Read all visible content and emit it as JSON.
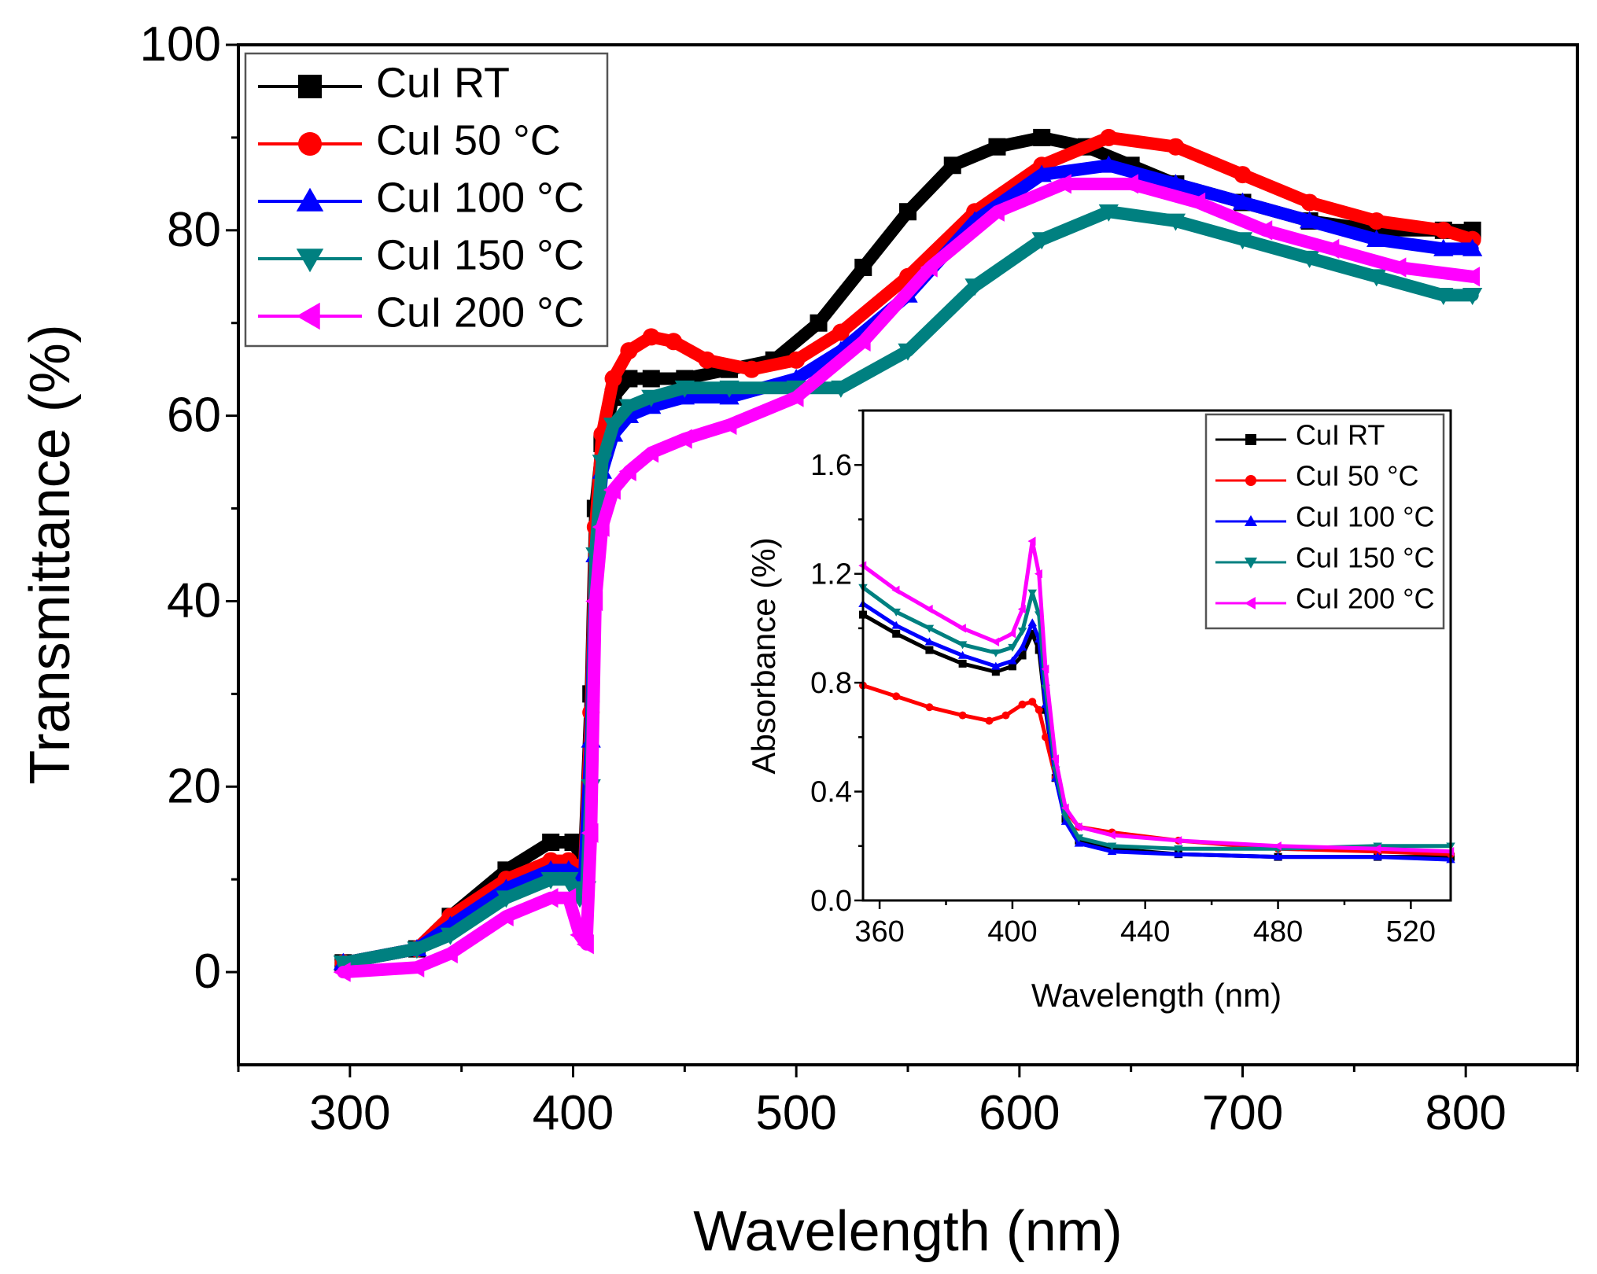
{
  "chart_data": [
    {
      "type": "line",
      "xlabel": "Wavelength (nm)",
      "ylabel": "Transmittance (%)",
      "xlim": [
        250,
        850
      ],
      "ylim": [
        -10,
        100
      ],
      "xticks": [
        300,
        400,
        500,
        600,
        700,
        800
      ],
      "yticks": [
        0,
        20,
        40,
        60,
        80,
        100
      ],
      "legend_position": "top-left",
      "series": [
        {
          "name": "CuI RT",
          "color": "#000000",
          "marker": "square",
          "x": [
            297,
            330,
            345,
            370,
            390,
            400,
            405,
            408,
            410,
            413,
            418,
            425,
            435,
            450,
            470,
            490,
            510,
            530,
            550,
            570,
            590,
            610,
            630,
            650,
            670,
            700,
            730,
            760,
            790,
            803
          ],
          "y": [
            1,
            2.5,
            6,
            11,
            14,
            14,
            12,
            30,
            50,
            57,
            62,
            64,
            64,
            64,
            65,
            66,
            70,
            76,
            82,
            87,
            89,
            90,
            89,
            87,
            85,
            83,
            81,
            80,
            80,
            80
          ]
        },
        {
          "name": "CuI 50 °C",
          "color": "#ff0000",
          "marker": "circle",
          "x": [
            297,
            330,
            345,
            370,
            390,
            398,
            405,
            408,
            410,
            413,
            418,
            425,
            435,
            445,
            460,
            480,
            500,
            520,
            550,
            580,
            610,
            640,
            670,
            700,
            730,
            760,
            790,
            803
          ],
          "y": [
            1,
            2.5,
            6,
            10,
            12,
            12,
            11,
            28,
            48,
            58,
            64,
            67,
            68.5,
            68,
            66,
            65,
            66,
            69,
            75,
            82,
            87,
            90,
            89,
            86,
            83,
            81,
            80,
            79
          ]
        },
        {
          "name": "CuI 100 °C",
          "color": "#0000ff",
          "marker": "up-triangle",
          "x": [
            297,
            330,
            345,
            370,
            390,
            398,
            405,
            408,
            410,
            413,
            418,
            425,
            435,
            450,
            470,
            500,
            520,
            550,
            580,
            610,
            640,
            670,
            700,
            730,
            760,
            790,
            803
          ],
          "y": [
            1,
            2.5,
            5,
            9,
            11,
            11,
            10,
            25,
            45,
            54,
            58,
            60,
            61,
            62,
            62,
            64,
            67,
            73,
            81,
            86,
            87,
            85,
            83,
            81,
            79,
            78,
            78
          ]
        },
        {
          "name": "CuI 150 °C",
          "color": "#008080",
          "marker": "down-triangle",
          "x": [
            297,
            330,
            345,
            370,
            390,
            398,
            403,
            406,
            408,
            410,
            413,
            418,
            425,
            435,
            450,
            470,
            500,
            520,
            550,
            580,
            610,
            640,
            670,
            700,
            730,
            760,
            790,
            803
          ],
          "y": [
            1,
            2.5,
            4,
            8,
            10,
            10,
            8,
            9,
            20,
            45,
            55,
            59,
            61,
            62,
            63,
            63,
            63,
            63,
            67,
            74,
            79,
            82,
            81,
            79,
            77,
            75,
            73,
            73
          ]
        },
        {
          "name": "CuI 200 °C",
          "color": "#ff00ff",
          "marker": "left-triangle",
          "x": [
            297,
            330,
            345,
            370,
            390,
            398,
            403,
            406,
            408,
            410,
            413,
            418,
            425,
            435,
            450,
            470,
            500,
            530,
            560,
            590,
            620,
            650,
            680,
            710,
            740,
            770,
            803
          ],
          "y": [
            0,
            0.5,
            2,
            6,
            8,
            8,
            4,
            3,
            15,
            40,
            48,
            52,
            54,
            56,
            57.5,
            59,
            62,
            68,
            76,
            82,
            85,
            85,
            83,
            80,
            78,
            76,
            75
          ]
        }
      ]
    },
    {
      "type": "line",
      "inset": true,
      "xlabel": "Wavelength (nm)",
      "ylabel": "Absorbance (%)",
      "xlim": [
        355,
        532
      ],
      "ylim": [
        0.0,
        1.8
      ],
      "xticks": [
        360,
        400,
        440,
        480,
        520
      ],
      "yticks": [
        "0.0",
        "0.4",
        "0.8",
        "1.2",
        "1.6"
      ],
      "legend_position": "top-right",
      "series": [
        {
          "name": "CuI RT",
          "color": "#000000",
          "marker": "square",
          "x": [
            355,
            365,
            375,
            385,
            395,
            400,
            403,
            406,
            408,
            410,
            413,
            416,
            420,
            430,
            450,
            480,
            510,
            532
          ],
          "y": [
            1.05,
            0.98,
            0.92,
            0.87,
            0.84,
            0.86,
            0.9,
            0.98,
            0.92,
            0.7,
            0.45,
            0.3,
            0.22,
            0.19,
            0.17,
            0.16,
            0.16,
            0.16
          ]
        },
        {
          "name": "CuI 50 °C",
          "color": "#ff0000",
          "marker": "circle",
          "x": [
            355,
            365,
            375,
            385,
            393,
            398,
            403,
            406,
            408,
            410,
            413,
            416,
            420,
            430,
            450,
            480,
            510,
            532
          ],
          "y": [
            0.79,
            0.75,
            0.71,
            0.68,
            0.66,
            0.68,
            0.72,
            0.73,
            0.7,
            0.6,
            0.45,
            0.33,
            0.27,
            0.25,
            0.22,
            0.19,
            0.18,
            0.17
          ]
        },
        {
          "name": "CuI 100 °C",
          "color": "#0000ff",
          "marker": "up-triangle",
          "x": [
            355,
            365,
            375,
            385,
            395,
            400,
            403,
            406,
            408,
            410,
            413,
            416,
            420,
            430,
            450,
            480,
            510,
            532
          ],
          "y": [
            1.09,
            1.01,
            0.95,
            0.9,
            0.86,
            0.88,
            0.93,
            1.02,
            0.96,
            0.72,
            0.45,
            0.29,
            0.21,
            0.18,
            0.17,
            0.16,
            0.16,
            0.15
          ]
        },
        {
          "name": "CuI 150 °C",
          "color": "#008080",
          "marker": "down-triangle",
          "x": [
            355,
            365,
            375,
            385,
            395,
            400,
            403,
            406,
            408,
            410,
            413,
            416,
            420,
            430,
            450,
            480,
            510,
            532
          ],
          "y": [
            1.15,
            1.06,
            1.0,
            0.94,
            0.91,
            0.93,
            0.99,
            1.13,
            1.05,
            0.78,
            0.48,
            0.31,
            0.23,
            0.2,
            0.19,
            0.19,
            0.2,
            0.2
          ]
        },
        {
          "name": "CuI 200 °C",
          "color": "#ff00ff",
          "marker": "left-triangle",
          "x": [
            355,
            365,
            375,
            385,
            395,
            400,
            403,
            406,
            408,
            410,
            413,
            416,
            420,
            430,
            450,
            480,
            510,
            532
          ],
          "y": [
            1.23,
            1.14,
            1.07,
            1.0,
            0.95,
            0.98,
            1.07,
            1.32,
            1.2,
            0.85,
            0.52,
            0.34,
            0.27,
            0.24,
            0.22,
            0.2,
            0.19,
            0.18
          ]
        }
      ]
    }
  ]
}
